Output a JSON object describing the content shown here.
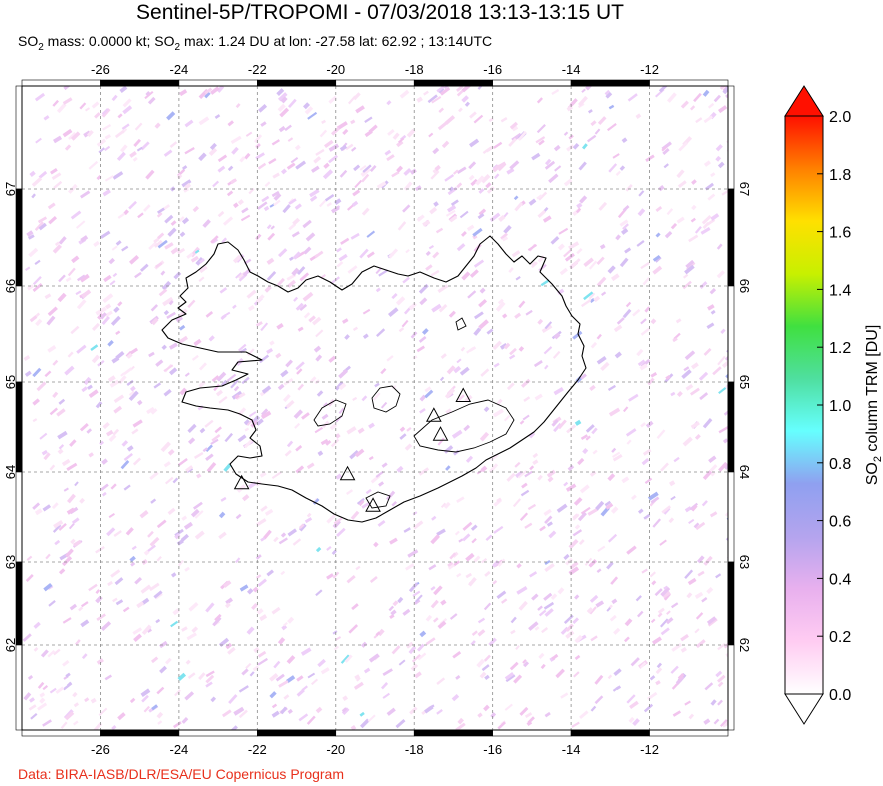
{
  "title": "Sentinel-5P/TROPOMI - 07/03/2018 13:13-13:15 UT",
  "subtitle": {
    "p1": "SO",
    "s1": "2",
    "p2": " mass: 0.0000 kt; SO",
    "s2": "2",
    "p3": " max: 1.24 DU at lon: -27.58 lat: 62.92 ; 13:14UTC"
  },
  "credit": "Data: BIRA-IASB/DLR/ESA/EU Copernicus Program",
  "map": {
    "lon_range": [
      -28,
      -10
    ],
    "lat_range": [
      61,
      68
    ],
    "lon_ticks": [
      "-26",
      "-24",
      "-22",
      "-20",
      "-18",
      "-16",
      "-14",
      "-12"
    ],
    "lat_ticks": [
      "62",
      "63",
      "64",
      "65",
      "66",
      "67"
    ],
    "gridlines": "dashed",
    "region": "Iceland"
  },
  "volcanoes": [
    {
      "name": "volcano-reykjanes",
      "lon": -22.4,
      "lat": 63.88
    },
    {
      "name": "volcano-hekla",
      "lon": -19.7,
      "lat": 63.98
    },
    {
      "name": "volcano-katla",
      "lon": -19.05,
      "lat": 63.63
    },
    {
      "name": "volcano-bardarbunga",
      "lon": -17.5,
      "lat": 64.63
    },
    {
      "name": "volcano-grimsvotn",
      "lon": -17.33,
      "lat": 64.42
    },
    {
      "name": "volcano-askja",
      "lon": -16.75,
      "lat": 64.85
    }
  ],
  "colorbar": {
    "label_main": "SO",
    "label_sub": "2",
    "label_rest": " column TRM [DU]",
    "min": 0.0,
    "max": 2.0,
    "ticks": [
      "0.0",
      "0.2",
      "0.4",
      "0.6",
      "0.8",
      "1.0",
      "1.2",
      "1.4",
      "1.6",
      "1.8",
      "2.0"
    ],
    "colors": [
      "#ffffff",
      "#ffccf2",
      "#e8b0ee",
      "#b4a4ee",
      "#8fa0f0",
      "#66ffff",
      "#4fdfa0",
      "#40e040",
      "#c8f000",
      "#ffe000",
      "#ff8000",
      "#ff1000"
    ]
  }
}
